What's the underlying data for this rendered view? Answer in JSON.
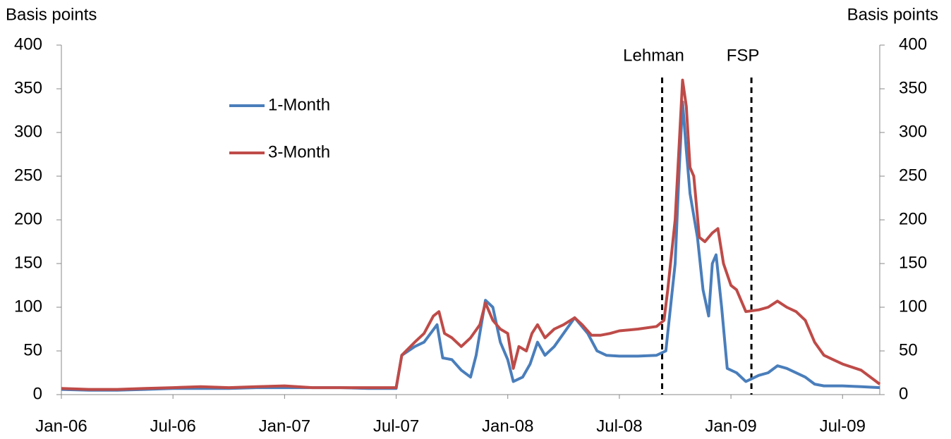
{
  "chart_data": {
    "type": "line",
    "ylabel": "Basis points",
    "y2label": "Basis points",
    "xlim": [
      0,
      44
    ],
    "xticks": [
      {
        "value": 0,
        "label": "Jan-06"
      },
      {
        "value": 6,
        "label": "Jul-06"
      },
      {
        "value": 12,
        "label": "Jan-07"
      },
      {
        "value": 18,
        "label": "Jul-07"
      },
      {
        "value": 24,
        "label": "Jan-08"
      },
      {
        "value": 30,
        "label": "Jul-08"
      },
      {
        "value": 36,
        "label": "Jan-09"
      },
      {
        "value": 42,
        "label": "Jul-09"
      }
    ],
    "ylim": [
      0,
      400
    ],
    "yticks": [
      0,
      50,
      100,
      150,
      200,
      250,
      300,
      350,
      400
    ],
    "y2lim": [
      0,
      400
    ],
    "y2ticks": [
      0,
      50,
      100,
      150,
      200,
      250,
      300,
      350,
      400
    ],
    "legend": "upper left",
    "annotations": [
      {
        "label": "Lehman",
        "x": 32.3
      },
      {
        "label": "FSP",
        "x": 37.1
      }
    ],
    "series": [
      {
        "name": "1-Month",
        "color": "#4a7ebb",
        "x": [
          0,
          1.5,
          3,
          4.5,
          6,
          7.5,
          9,
          10.5,
          12,
          13.5,
          15,
          16.5,
          18,
          18.3,
          19,
          19.5,
          20.2,
          20.5,
          21,
          21.5,
          22,
          22.3,
          22.8,
          23.2,
          23.6,
          24,
          24.3,
          24.8,
          25.2,
          25.6,
          26,
          26.5,
          27,
          27.6,
          28.3,
          28.8,
          29.3,
          30,
          31,
          32,
          32.5,
          33,
          33.2,
          33.4,
          33.6,
          33.8,
          34.2,
          34.5,
          34.8,
          35,
          35.2,
          35.5,
          35.8,
          36.3,
          36.8,
          37.5,
          38,
          38.5,
          39,
          40,
          40.5,
          41,
          42,
          43,
          44
        ],
        "values": [
          6,
          5,
          5,
          6,
          7,
          7,
          7,
          8,
          8,
          8,
          8,
          7,
          7,
          45,
          55,
          60,
          80,
          42,
          40,
          28,
          20,
          45,
          108,
          100,
          60,
          40,
          15,
          20,
          35,
          60,
          45,
          55,
          70,
          88,
          70,
          50,
          45,
          44,
          44,
          45,
          50,
          150,
          250,
          335,
          280,
          230,
          180,
          120,
          90,
          150,
          160,
          100,
          30,
          25,
          15,
          22,
          25,
          33,
          30,
          20,
          12,
          10,
          10,
          9,
          8
        ]
      },
      {
        "name": "3-Month",
        "color": "#be4b48",
        "x": [
          0,
          1.5,
          3,
          4.5,
          6,
          7.5,
          9,
          10.5,
          12,
          13.5,
          15,
          16.5,
          18,
          18.3,
          19,
          19.5,
          20,
          20.3,
          20.6,
          21,
          21.5,
          22,
          22.5,
          22.8,
          23.2,
          23.6,
          24,
          24.3,
          24.6,
          25,
          25.3,
          25.6,
          26,
          26.5,
          27,
          27.6,
          28,
          28.5,
          29,
          29.5,
          30,
          31,
          32,
          32.4,
          32.6,
          33,
          33.2,
          33.4,
          33.6,
          33.8,
          34,
          34.3,
          34.6,
          35,
          35.3,
          35.6,
          36,
          36.3,
          36.8,
          37.5,
          38,
          38.5,
          39,
          39.5,
          40,
          40.5,
          41,
          41.5,
          42,
          43,
          44
        ],
        "values": [
          7,
          6,
          6,
          7,
          8,
          9,
          8,
          9,
          10,
          8,
          8,
          8,
          8,
          45,
          60,
          70,
          90,
          95,
          70,
          65,
          55,
          65,
          80,
          105,
          85,
          75,
          70,
          30,
          55,
          50,
          70,
          80,
          65,
          75,
          80,
          88,
          80,
          68,
          68,
          70,
          73,
          75,
          78,
          85,
          120,
          200,
          280,
          360,
          330,
          260,
          250,
          180,
          175,
          185,
          190,
          150,
          125,
          120,
          95,
          97,
          100,
          107,
          100,
          95,
          85,
          60,
          45,
          40,
          35,
          28,
          12
        ]
      }
    ]
  }
}
